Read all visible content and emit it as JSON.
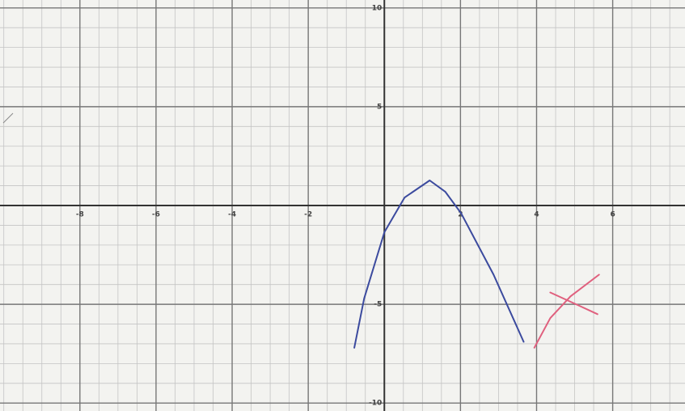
{
  "chart_data": {
    "type": "line",
    "xlim": [
      -10.1,
      7.9
    ],
    "ylim": [
      -10.4,
      10.4
    ],
    "xticks": [
      -8,
      -6,
      -4,
      -2,
      2,
      4,
      6
    ],
    "yticks": [
      10,
      5,
      -5,
      -10
    ],
    "grid": true,
    "series": [
      {
        "color": "#3b4a9e",
        "x": [
          -0.79,
          -0.53,
          0,
          0.53,
          1.19,
          1.6,
          2.02,
          2.87,
          3.66
        ],
        "values": [
          -7.2,
          -4.7,
          -1.35,
          0.4,
          1.27,
          0.7,
          -0.4,
          -3.5,
          -6.9
        ]
      },
      {
        "color": "#e0607e",
        "x": [
          3.94,
          4.36,
          4.89,
          5.64
        ],
        "values": [
          -7.2,
          -5.7,
          -4.6,
          -3.5
        ]
      },
      {
        "color": "#e0607e",
        "x": [
          4.36,
          5.04,
          5.6
        ],
        "values": [
          -4.4,
          -5.0,
          -5.5
        ]
      }
    ]
  }
}
